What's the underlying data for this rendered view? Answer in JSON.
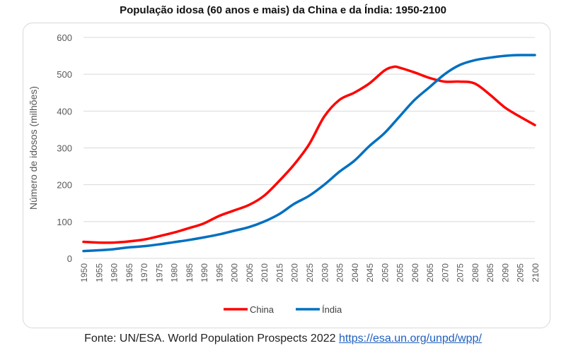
{
  "chart_data": {
    "type": "line",
    "title": "População idosa (60 anos e mais) da China e da Índia: 1950-2100",
    "xlabel": "",
    "ylabel": "Número de idosos (milhões)",
    "ylim": [
      0,
      600
    ],
    "yticks": [
      0,
      100,
      200,
      300,
      400,
      500,
      600
    ],
    "xticks": [
      1950,
      1955,
      1960,
      1965,
      1970,
      1975,
      1980,
      1985,
      1990,
      1995,
      2000,
      2005,
      2010,
      2015,
      2020,
      2025,
      2030,
      2035,
      2040,
      2045,
      2050,
      2055,
      2060,
      2065,
      2070,
      2075,
      2080,
      2085,
      2090,
      2095,
      2100
    ],
    "grid": "horizontal",
    "legend": "bottom",
    "series": [
      {
        "name": "China",
        "color": "#ff0000",
        "x": [
          1950,
          1955,
          1960,
          1965,
          1970,
          1975,
          1980,
          1985,
          1990,
          1995,
          2000,
          2005,
          2010,
          2015,
          2020,
          2025,
          2030,
          2035,
          2040,
          2045,
          2050,
          2053,
          2055,
          2060,
          2065,
          2070,
          2075,
          2080,
          2085,
          2090,
          2095,
          2100
        ],
        "values": [
          45,
          43,
          43,
          46,
          51,
          60,
          70,
          82,
          95,
          115,
          130,
          145,
          170,
          210,
          255,
          310,
          385,
          430,
          450,
          475,
          510,
          520,
          518,
          505,
          490,
          480,
          480,
          475,
          445,
          410,
          385,
          362
        ]
      },
      {
        "name": "Índia",
        "color": "#0070c0",
        "x": [
          1950,
          1955,
          1960,
          1965,
          1970,
          1975,
          1980,
          1985,
          1990,
          1995,
          2000,
          2005,
          2010,
          2015,
          2020,
          2025,
          2030,
          2035,
          2040,
          2045,
          2050,
          2055,
          2060,
          2065,
          2070,
          2075,
          2080,
          2085,
          2090,
          2095,
          2100
        ],
        "values": [
          20,
          22,
          25,
          30,
          33,
          38,
          44,
          50,
          57,
          65,
          75,
          85,
          100,
          120,
          148,
          170,
          200,
          235,
          265,
          305,
          340,
          385,
          430,
          465,
          500,
          525,
          538,
          545,
          550,
          552,
          552
        ]
      }
    ]
  },
  "source": {
    "text": "Fonte: UN/ESA. World Population Prospects 2022",
    "link": "https://esa.un.org/unpd/wpp/"
  }
}
